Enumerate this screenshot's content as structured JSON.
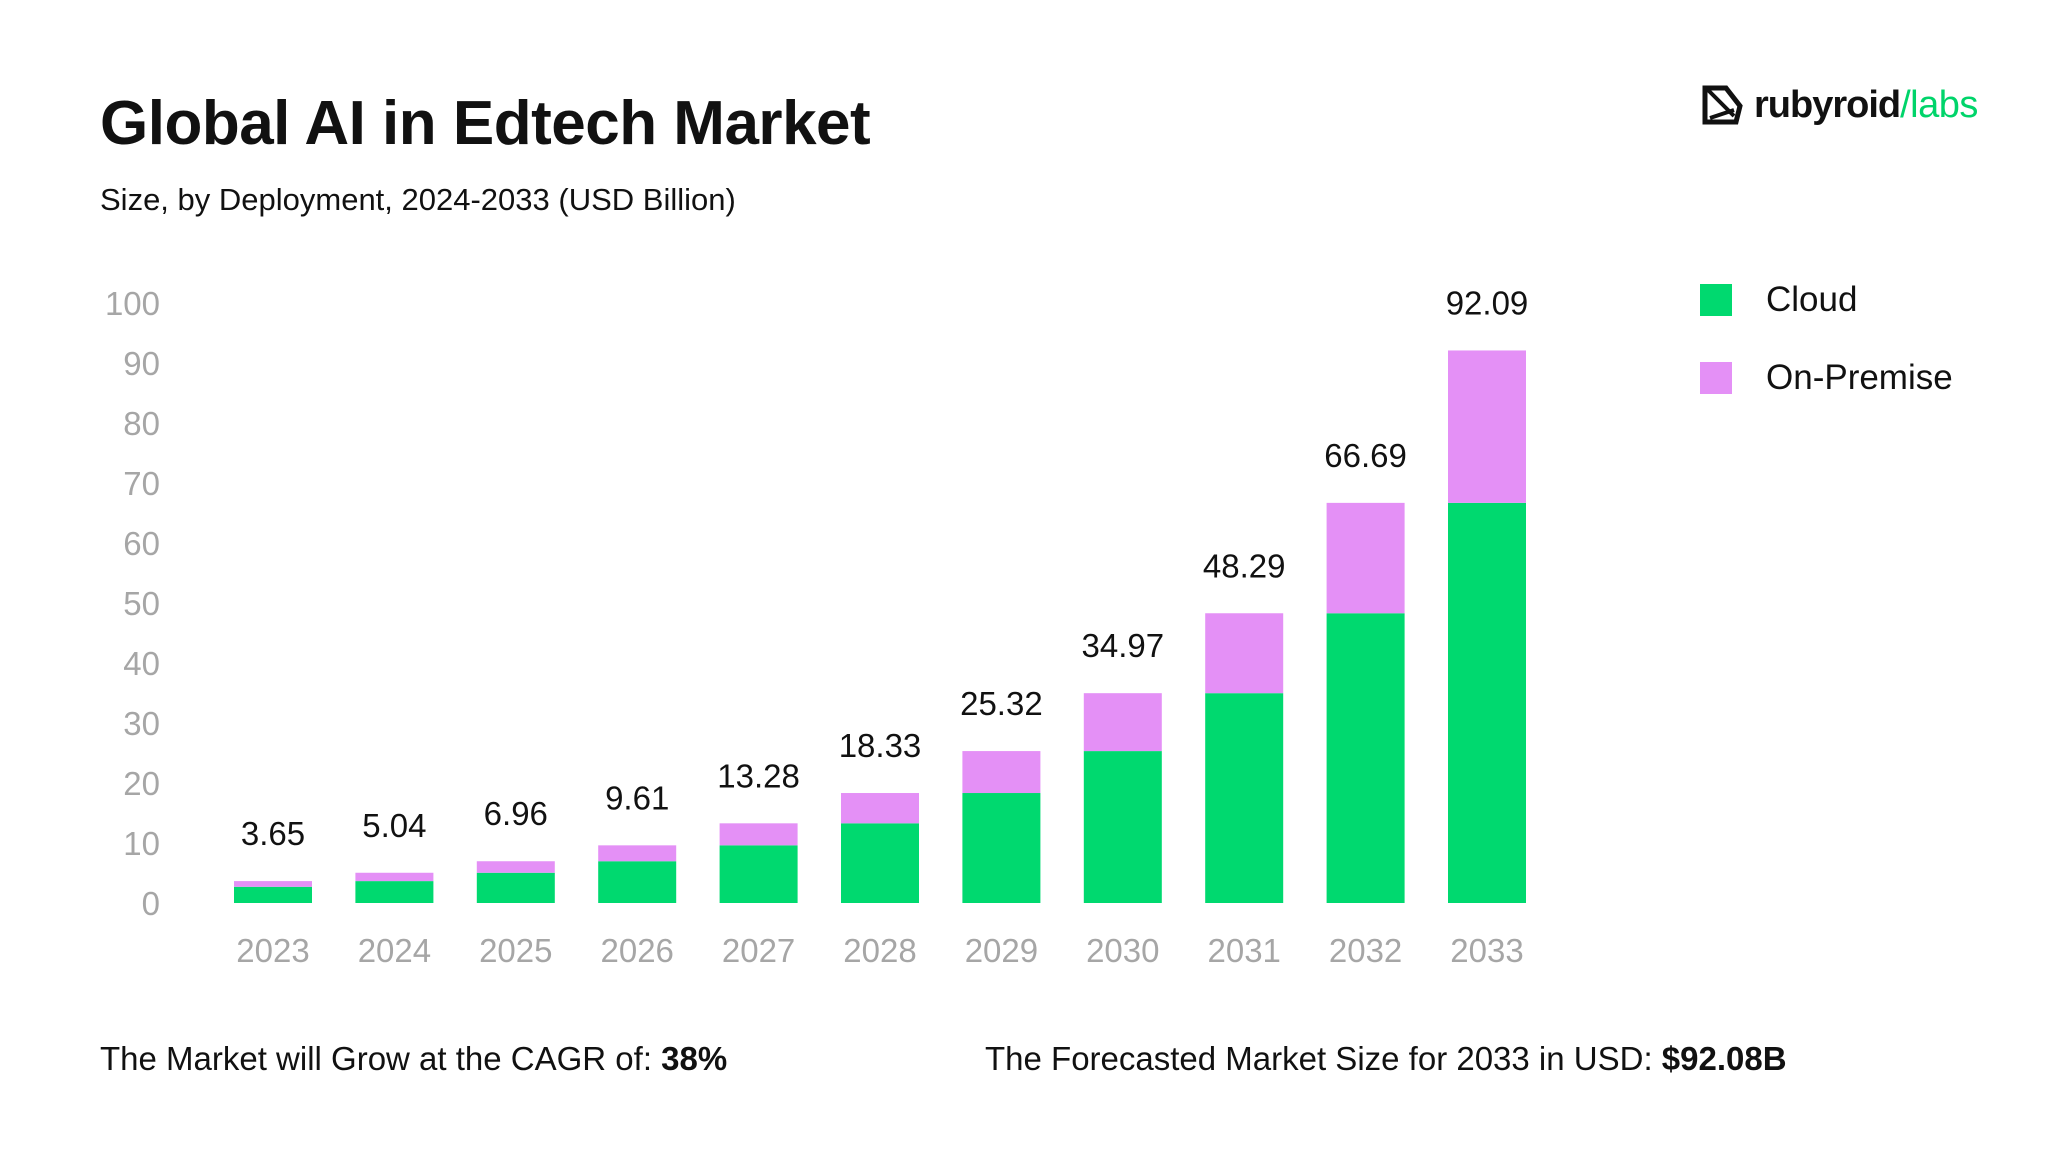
{
  "header": {
    "title": "Global AI in Edtech Market",
    "subtitle": "Size, by Deployment, 2024-2033 (USD Billion)"
  },
  "logo": {
    "name": "rubyroid",
    "accent": "/labs",
    "icon": "gem-icon"
  },
  "colors": {
    "cloud": "#00d96f",
    "on_premise": "#e490f6",
    "brand_accent": "#00d46a",
    "axis_text": "#a6a6a6"
  },
  "legend": [
    {
      "label": "Cloud",
      "color": "#00d96f"
    },
    {
      "label": "On-Premise",
      "color": "#e490f6"
    }
  ],
  "footer": {
    "cagr_label": "The Market will Grow at the CAGR of:",
    "cagr_value": "38%",
    "forecast_label": "The Forecasted Market Size for 2033 in USD:",
    "forecast_value": "$92.08B"
  },
  "chart_data": {
    "type": "bar",
    "stacked": true,
    "title": "Global AI in Edtech Market",
    "subtitle": "Size, by Deployment, 2024-2033 (USD Billion)",
    "xlabel": "",
    "ylabel": "",
    "ylim": [
      0,
      100
    ],
    "yticks": [
      0,
      10,
      20,
      30,
      40,
      50,
      60,
      70,
      80,
      90,
      100
    ],
    "grid": false,
    "legend_position": "top-right",
    "categories": [
      "2023",
      "2024",
      "2025",
      "2026",
      "2027",
      "2028",
      "2029",
      "2030",
      "2031",
      "2032",
      "2033"
    ],
    "series": [
      {
        "name": "Cloud",
        "values": [
          2.7,
          3.65,
          5.04,
          6.96,
          9.61,
          13.28,
          18.33,
          25.32,
          34.97,
          48.29,
          66.69
        ]
      },
      {
        "name": "On-Premise",
        "values": [
          0.95,
          1.39,
          1.92,
          2.65,
          3.67,
          5.05,
          6.99,
          9.65,
          13.32,
          18.4,
          25.4
        ]
      }
    ],
    "totals": [
      "3.65",
      "5.04",
      "6.96",
      "9.61",
      "13.28",
      "18.33",
      "25.32",
      "34.97",
      "48.29",
      "66.69",
      "92.09"
    ]
  }
}
